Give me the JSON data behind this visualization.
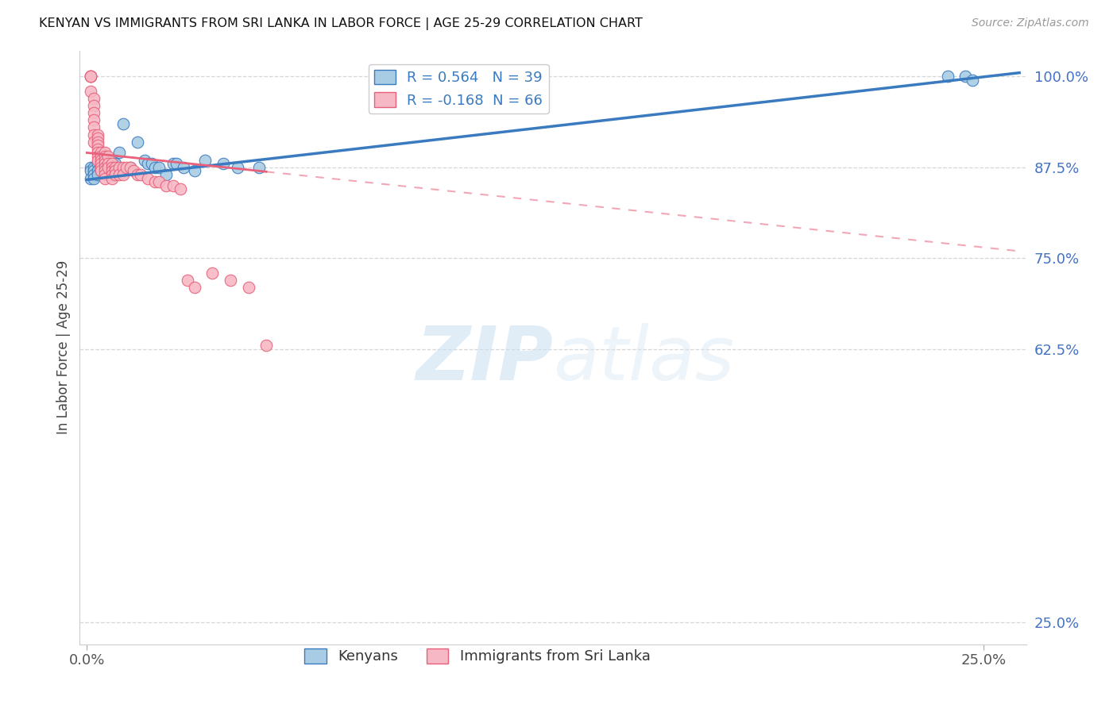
{
  "title": "KENYAN VS IMMIGRANTS FROM SRI LANKA IN LABOR FORCE | AGE 25-29 CORRELATION CHART",
  "source": "Source: ZipAtlas.com",
  "ylabel_label": "In Labor Force | Age 25-29",
  "ylabel_ticks": [
    1.0,
    0.875,
    0.75,
    0.625,
    0.25
  ],
  "ylabel_tick_labels": [
    "100.0%",
    "87.5%",
    "75.0%",
    "62.5%",
    "25.0%"
  ],
  "xlim": [
    -0.002,
    0.262
  ],
  "ylim": [
    0.22,
    1.035
  ],
  "blue_R": 0.564,
  "blue_N": 39,
  "pink_R": -0.168,
  "pink_N": 66,
  "blue_color": "#a8cce4",
  "pink_color": "#f5b8c4",
  "blue_line_color": "#3a7abf",
  "pink_line_color": "#e8607a",
  "watermark_zip": "ZIP",
  "watermark_atlas": "atlas",
  "blue_x": [
    0.001,
    0.001,
    0.001,
    0.002,
    0.002,
    0.002,
    0.002,
    0.003,
    0.003,
    0.003,
    0.004,
    0.004,
    0.005,
    0.005,
    0.006,
    0.006,
    0.007,
    0.008,
    0.009,
    0.01,
    0.012,
    0.014,
    0.016,
    0.017,
    0.018,
    0.019,
    0.02,
    0.022,
    0.024,
    0.025,
    0.027,
    0.03,
    0.033,
    0.038,
    0.042,
    0.048,
    0.24,
    0.245,
    0.247
  ],
  "blue_y": [
    0.875,
    0.87,
    0.86,
    0.875,
    0.87,
    0.865,
    0.86,
    0.88,
    0.87,
    0.865,
    0.875,
    0.87,
    0.89,
    0.875,
    0.88,
    0.875,
    0.885,
    0.88,
    0.895,
    0.935,
    0.875,
    0.91,
    0.885,
    0.88,
    0.88,
    0.875,
    0.875,
    0.865,
    0.88,
    0.88,
    0.875,
    0.87,
    0.885,
    0.88,
    0.875,
    0.875,
    1.0,
    1.0,
    0.995
  ],
  "pink_x": [
    0.001,
    0.001,
    0.001,
    0.001,
    0.001,
    0.002,
    0.002,
    0.002,
    0.002,
    0.002,
    0.002,
    0.002,
    0.003,
    0.003,
    0.003,
    0.003,
    0.003,
    0.003,
    0.003,
    0.003,
    0.004,
    0.004,
    0.004,
    0.004,
    0.004,
    0.004,
    0.005,
    0.005,
    0.005,
    0.005,
    0.005,
    0.005,
    0.005,
    0.005,
    0.006,
    0.006,
    0.006,
    0.007,
    0.007,
    0.007,
    0.007,
    0.007,
    0.008,
    0.008,
    0.008,
    0.009,
    0.009,
    0.01,
    0.01,
    0.011,
    0.012,
    0.013,
    0.014,
    0.015,
    0.017,
    0.019,
    0.02,
    0.022,
    0.024,
    0.026,
    0.028,
    0.03,
    0.035,
    0.04,
    0.045,
    0.05
  ],
  "pink_y": [
    1.0,
    1.0,
    1.0,
    1.0,
    0.98,
    0.97,
    0.96,
    0.95,
    0.94,
    0.93,
    0.92,
    0.91,
    0.92,
    0.915,
    0.91,
    0.905,
    0.9,
    0.895,
    0.89,
    0.885,
    0.895,
    0.89,
    0.885,
    0.88,
    0.875,
    0.87,
    0.895,
    0.89,
    0.885,
    0.88,
    0.875,
    0.87,
    0.865,
    0.86,
    0.89,
    0.88,
    0.875,
    0.88,
    0.875,
    0.87,
    0.865,
    0.86,
    0.875,
    0.87,
    0.865,
    0.875,
    0.865,
    0.875,
    0.865,
    0.875,
    0.875,
    0.87,
    0.865,
    0.865,
    0.86,
    0.855,
    0.855,
    0.85,
    0.85,
    0.845,
    0.72,
    0.71,
    0.73,
    0.72,
    0.71,
    0.63
  ],
  "blue_trend_x": [
    0.0,
    0.26
  ],
  "blue_trend_y_intercept": 0.858,
  "blue_trend_slope": 0.565,
  "pink_trend_solid_end": 0.05,
  "pink_trend_dash_end": 0.26,
  "pink_trend_y_intercept": 0.895,
  "pink_trend_slope": -0.52
}
